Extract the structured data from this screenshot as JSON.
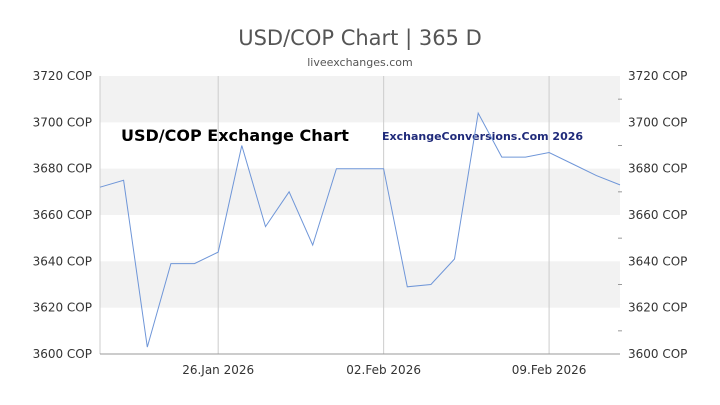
{
  "header": {
    "title": "USD/COP Chart | 365 D",
    "subtitle": "liveexchanges.com"
  },
  "watermarks": {
    "left": "USD/COP Exchange Chart",
    "right": "ExchangeConversions.Com 2026"
  },
  "colors": {
    "line": "#6f96d8",
    "band": "#f2f2f2",
    "grid": "#cccccc"
  },
  "chart_data": {
    "type": "line",
    "title": "USD/COP Chart | 365 D",
    "subtitle": "liveexchanges.com",
    "ylim": [
      3600,
      3720
    ],
    "y_ticks": [
      3720,
      3700,
      3680,
      3660,
      3640,
      3620,
      3600
    ],
    "y_tick_labels": [
      "3720 COP",
      "3700 COP",
      "3680 COP",
      "3660 COP",
      "3640 COP",
      "3620 COP",
      "3600 COP"
    ],
    "x_ticks": [
      "2026-01-26",
      "2026-02-02",
      "2026-02-09"
    ],
    "x_tick_labels": [
      "26.Jan 2026",
      "02.Feb 2026",
      "09.Feb 2026"
    ],
    "xlim": [
      "2026-01-21",
      "2026-02-12"
    ],
    "grid": true,
    "series": [
      {
        "x": [
          "2026-01-21",
          "2026-01-22",
          "2026-01-23",
          "2026-01-24",
          "2026-01-25",
          "2026-01-26",
          "2026-01-27",
          "2026-01-28",
          "2026-01-29",
          "2026-01-30",
          "2026-01-31",
          "2026-02-01",
          "2026-02-02",
          "2026-02-03",
          "2026-02-04",
          "2026-02-05",
          "2026-02-06",
          "2026-02-07",
          "2026-02-08",
          "2026-02-09",
          "2026-02-10",
          "2026-02-11",
          "2026-02-12"
        ],
        "values": [
          3672,
          3675,
          3603,
          3639,
          3639,
          3644,
          3690,
          3655,
          3670,
          3647,
          3680,
          3680,
          3680,
          3629,
          3630,
          3641,
          3704,
          3685,
          3685,
          3687,
          3682,
          3677,
          3673
        ]
      }
    ]
  }
}
